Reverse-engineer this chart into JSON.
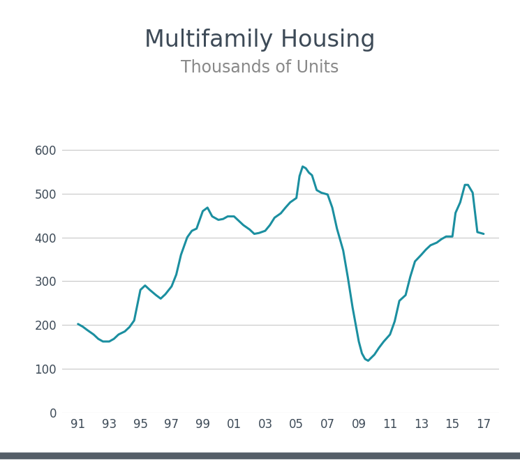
{
  "title": "Multifamily Housing",
  "subtitle": "Thousands of Units",
  "title_color": "#3d4a57",
  "subtitle_color": "#888888",
  "line_color": "#1b8fa0",
  "line_width": 2.2,
  "background_color": "#ffffff",
  "grid_color": "#c8c8c8",
  "tick_color": "#3d4a57",
  "bottom_bar_color": "#555e68",
  "ylim": [
    0,
    650
  ],
  "yticks": [
    0,
    100,
    200,
    300,
    400,
    500,
    600
  ],
  "xtick_labels": [
    "91",
    "93",
    "95",
    "97",
    "99",
    "01",
    "03",
    "05",
    "07",
    "09",
    "11",
    "13",
    "15",
    "17"
  ],
  "xtick_positions": [
    1991,
    1993,
    1995,
    1997,
    1999,
    2001,
    2003,
    2005,
    2007,
    2009,
    2011,
    2013,
    2015,
    2017
  ],
  "xlim": [
    1990,
    2018
  ],
  "years": [
    1991.0,
    1991.3,
    1991.6,
    1992.0,
    1992.3,
    1992.6,
    1993.0,
    1993.3,
    1993.6,
    1994.0,
    1994.3,
    1994.6,
    1995.0,
    1995.3,
    1995.6,
    1996.0,
    1996.3,
    1996.6,
    1997.0,
    1997.3,
    1997.6,
    1998.0,
    1998.3,
    1998.6,
    1999.0,
    1999.3,
    1999.6,
    2000.0,
    2000.3,
    2000.6,
    2001.0,
    2001.3,
    2001.6,
    2002.0,
    2002.3,
    2002.6,
    2003.0,
    2003.3,
    2003.6,
    2004.0,
    2004.3,
    2004.6,
    2005.0,
    2005.2,
    2005.4,
    2005.6,
    2005.8,
    2006.0,
    2006.3,
    2006.6,
    2007.0,
    2007.3,
    2007.6,
    2008.0,
    2008.3,
    2008.6,
    2009.0,
    2009.2,
    2009.4,
    2009.6,
    2009.8,
    2010.0,
    2010.3,
    2010.6,
    2011.0,
    2011.3,
    2011.6,
    2012.0,
    2012.3,
    2012.6,
    2013.0,
    2013.3,
    2013.6,
    2014.0,
    2014.3,
    2014.6,
    2015.0,
    2015.2,
    2015.5,
    2015.8,
    2016.0,
    2016.3,
    2016.6,
    2017.0
  ],
  "values": [
    202,
    196,
    188,
    178,
    168,
    162,
    162,
    168,
    178,
    185,
    195,
    210,
    280,
    290,
    280,
    268,
    260,
    270,
    288,
    315,
    360,
    400,
    415,
    420,
    460,
    468,
    448,
    440,
    442,
    448,
    448,
    438,
    428,
    418,
    408,
    410,
    415,
    428,
    445,
    455,
    468,
    480,
    490,
    540,
    562,
    558,
    548,
    542,
    508,
    502,
    498,
    468,
    420,
    370,
    308,
    240,
    162,
    135,
    122,
    118,
    125,
    132,
    148,
    162,
    178,
    208,
    255,
    268,
    310,
    345,
    360,
    372,
    382,
    388,
    396,
    402,
    402,
    456,
    480,
    520,
    520,
    502,
    412,
    408
  ]
}
